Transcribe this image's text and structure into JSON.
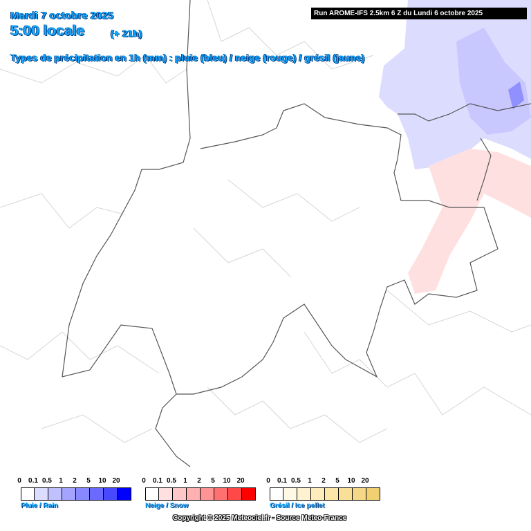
{
  "header": {
    "date": "Mardi 7 octobre 2025",
    "time": "5:00 locale",
    "lead": "(+ 21h)",
    "run": "Run AROME-IFS 2.5km 6 Z du Lundi 6 octobre 2025",
    "subtitle": "Types de précipitation en 1h (mm) : pluie (bleu) / neige (rouge) / grésil (jaune)"
  },
  "legends": [
    {
      "name": "Pluie / Rain",
      "labels": [
        "0",
        "0.1",
        "0.5",
        "1",
        "2",
        "5",
        "10",
        "20"
      ],
      "colors": [
        "#ffffff",
        "#dcdcff",
        "#c0c0ff",
        "#a4a4ff",
        "#8888ff",
        "#6a6aff",
        "#4848ff",
        "#0000ff"
      ]
    },
    {
      "name": "Neige / Snow",
      "labels": [
        "0",
        "0.1",
        "0.5",
        "1",
        "2",
        "5",
        "10",
        "20"
      ],
      "colors": [
        "#ffffff",
        "#ffe0e0",
        "#ffc8c8",
        "#ffb0b0",
        "#ff9494",
        "#ff7070",
        "#ff4848",
        "#ff0000"
      ]
    },
    {
      "name": "Grésil / Ice pellet",
      "labels": [
        "0",
        "0.1",
        "0.5",
        "1",
        "2",
        "5",
        "10",
        "20"
      ],
      "colors": [
        "#ffffff",
        "#fff8e4",
        "#fff2d0",
        "#ffecbc",
        "#fce6a8",
        "#f8e098",
        "#f4d888",
        "#f0d070"
      ]
    }
  ],
  "footer": "Copyright © 2025 Meteociel.fr - Source Meteo-France"
}
